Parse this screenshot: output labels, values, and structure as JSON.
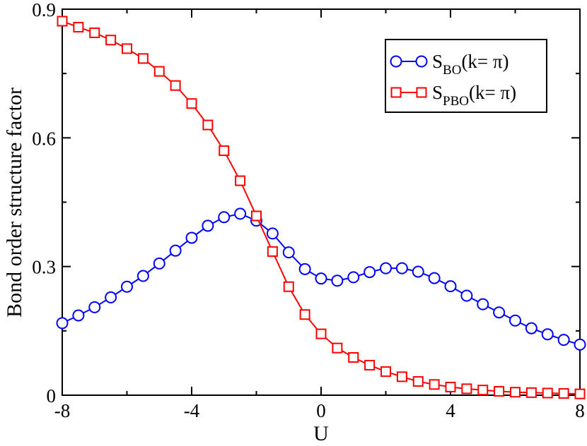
{
  "chart_data": {
    "type": "line",
    "title": "",
    "xlabel": "U",
    "ylabel": "Bond order structure factor",
    "xlim": [
      -8,
      8
    ],
    "ylim": [
      0,
      0.9
    ],
    "xticks": [
      -8,
      -4,
      0,
      4,
      8
    ],
    "xtick_labels": [
      "-8",
      "-4",
      "0",
      "4",
      "8"
    ],
    "yticks": [
      0,
      0.3,
      0.6,
      0.9
    ],
    "ytick_labels": [
      "0",
      "0.3",
      "0.6",
      "0.9"
    ],
    "grid": false,
    "legend_position": "top-right",
    "x": [
      -8,
      -7.5,
      -7,
      -6.5,
      -6,
      -5.5,
      -5,
      -4.5,
      -4,
      -3.5,
      -3,
      -2.5,
      -2,
      -1.5,
      -1,
      -0.5,
      0,
      0.5,
      1,
      1.5,
      2,
      2.5,
      3,
      3.5,
      4,
      4.5,
      5,
      5.5,
      6,
      6.5,
      7,
      7.5,
      8
    ],
    "series": [
      {
        "name": "S_BO(k= π)",
        "legend": {
          "main": "S",
          "sub": "BO",
          "suffix": "(k= π)"
        },
        "color": "#0000ff",
        "marker": "circle",
        "values": [
          0.168,
          0.186,
          0.205,
          0.228,
          0.253,
          0.278,
          0.307,
          0.337,
          0.367,
          0.395,
          0.415,
          0.423,
          0.407,
          0.377,
          0.333,
          0.294,
          0.272,
          0.267,
          0.275,
          0.287,
          0.296,
          0.296,
          0.288,
          0.273,
          0.254,
          0.232,
          0.212,
          0.193,
          0.174,
          0.156,
          0.142,
          0.129,
          0.118
        ]
      },
      {
        "name": "S_PBO(k= π)",
        "legend": {
          "main": "S",
          "sub": "PBO",
          "suffix": "(k= π)"
        },
        "color": "#ff0000",
        "marker": "square",
        "values": [
          0.872,
          0.858,
          0.845,
          0.828,
          0.808,
          0.785,
          0.755,
          0.722,
          0.68,
          0.63,
          0.57,
          0.5,
          0.418,
          0.335,
          0.253,
          0.188,
          0.143,
          0.11,
          0.088,
          0.07,
          0.055,
          0.043,
          0.032,
          0.025,
          0.019,
          0.015,
          0.012,
          0.009,
          0.007,
          0.006,
          0.005,
          0.004,
          0.003
        ]
      }
    ]
  }
}
